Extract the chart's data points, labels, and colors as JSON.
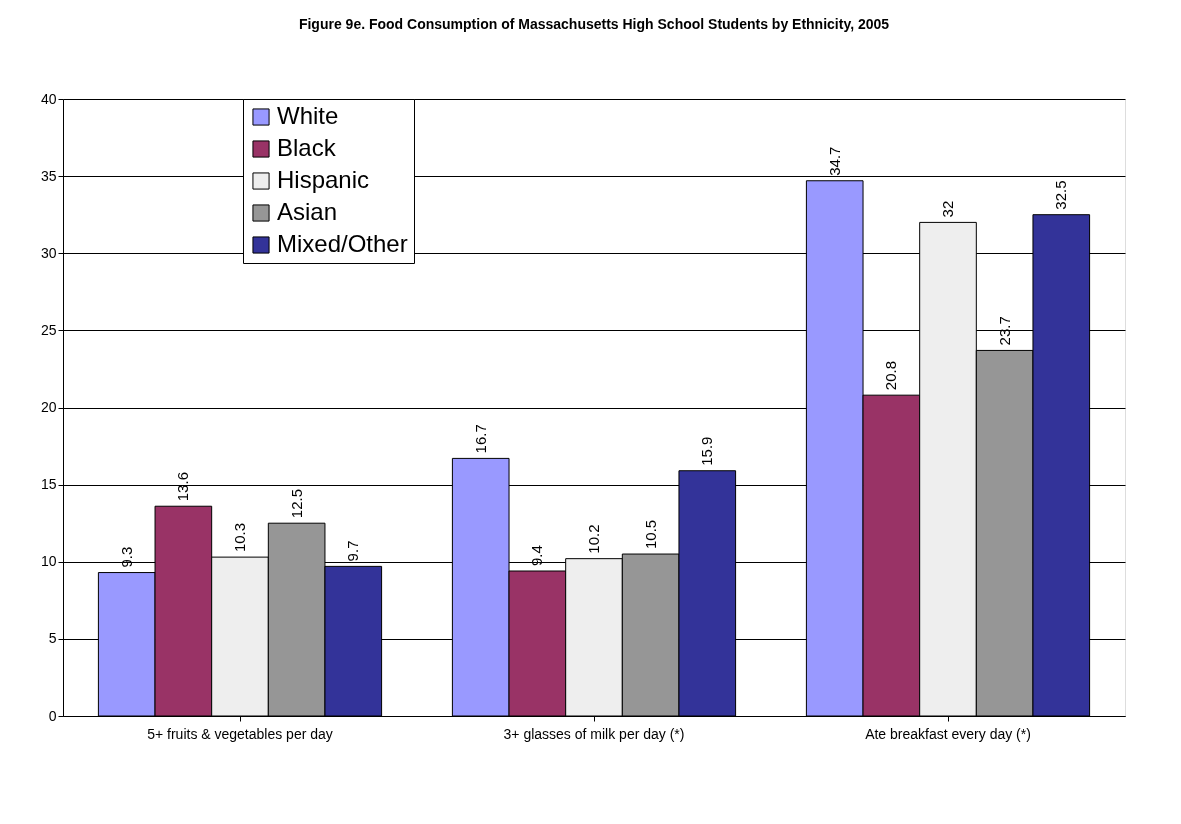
{
  "chart_data": {
    "type": "bar",
    "title": "Figure 9e. Food Consumption of Massachusetts High School Students by Ethnicity, 2005",
    "categories": [
      "5+ fruits & vegetables per day",
      "3+ glasses of milk per day (*)",
      "Ate breakfast every day (*)"
    ],
    "series": [
      {
        "name": "White",
        "color": "#9999ff",
        "values": [
          9.3,
          16.7,
          34.7
        ]
      },
      {
        "name": "Black",
        "color": "#993366",
        "values": [
          13.6,
          9.4,
          20.8
        ]
      },
      {
        "name": "Hispanic",
        "color": "#eeeeee",
        "values": [
          10.3,
          10.2,
          32
        ]
      },
      {
        "name": "Asian",
        "color": "#969696",
        "values": [
          12.5,
          10.5,
          23.7
        ]
      },
      {
        "name": "Mixed/Other",
        "color": "#333399",
        "values": [
          9.7,
          15.9,
          32.5
        ]
      }
    ],
    "ylim": [
      0,
      40
    ],
    "yticks": [
      0,
      5,
      10,
      15,
      20,
      25,
      30,
      35,
      40
    ],
    "grid": "y",
    "legend": "top left",
    "data_labels": true
  }
}
